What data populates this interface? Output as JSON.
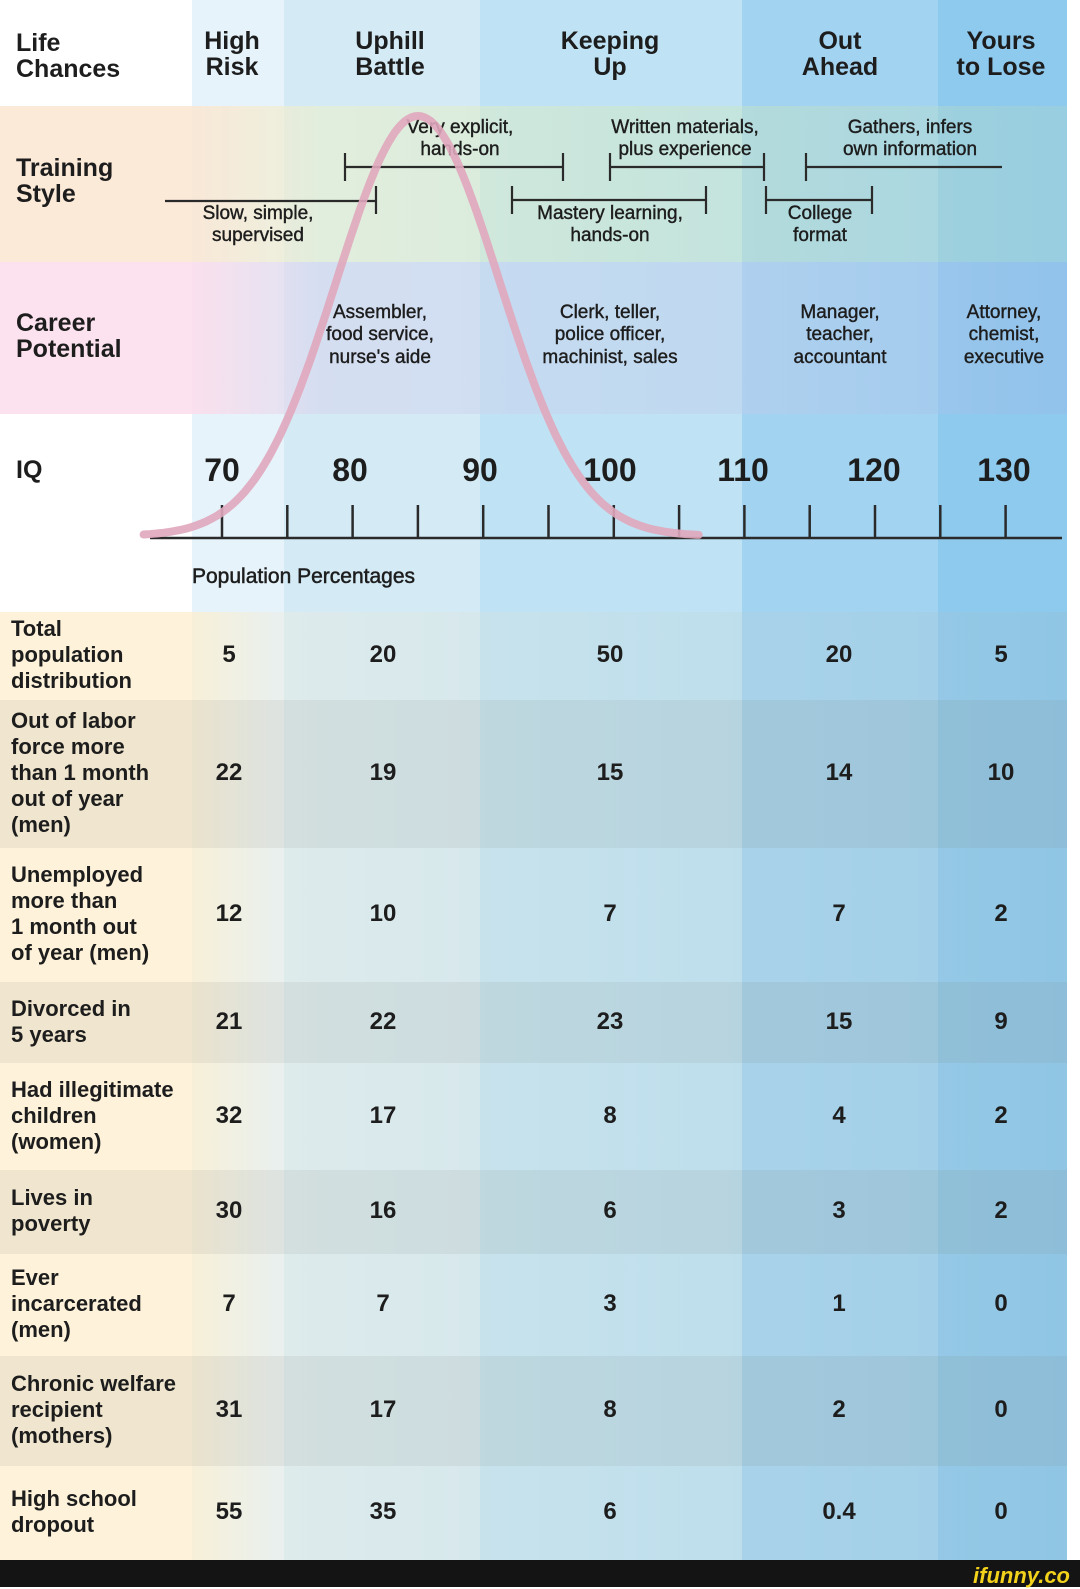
{
  "header": {
    "corner_label": "Life\nChances",
    "columns": [
      "High\nRisk",
      "Uphill\nBattle",
      "Keeping\nUp",
      "Out\nAhead",
      "Yours\nto Lose"
    ]
  },
  "training": {
    "label": "Training\nStyle",
    "items": [
      "Very explicit,\nhands-on",
      "Written materials,\nplus experience",
      "Gathers, infers\nown information",
      "Slow, simple,\nsupervised",
      "Mastery learning,\nhands-on",
      "College\nformat"
    ]
  },
  "career": {
    "label": "Career\nPotential",
    "items": [
      "Assembler,\nfood service,\nnurse's aide",
      "Clerk, teller,\npolice officer,\nmachinist, sales",
      "Manager,\nteacher,\naccountant",
      "Attorney,\nchemist,\nexecutive"
    ]
  },
  "iq": {
    "label": "IQ",
    "ticks": [
      "70",
      "80",
      "90",
      "100",
      "110",
      "120",
      "130"
    ]
  },
  "section_title": "Population Percentages",
  "colors": {
    "col_high_risk": "#e6f3fa",
    "col_uphill": "#d4ebf6",
    "col_keeping": "#bfe3f4",
    "col_out_ahead": "#9fd1f1",
    "col_yours": "#8cc8ee",
    "curve": "#e0a7bd",
    "training_band": "#f8ead8",
    "career_band": "#f7dfe9",
    "brand": "#f2d21b"
  },
  "chart_data": {
    "type": "table",
    "title": "",
    "x": [
      70,
      80,
      90,
      100,
      110,
      120,
      130
    ],
    "xlabel": "IQ",
    "categories": [
      "High Risk",
      "Uphill Battle",
      "Keeping Up",
      "Out Ahead",
      "Yours to Lose"
    ],
    "series": [
      {
        "name": "Total population distribution",
        "values": [
          "5",
          "20",
          "50",
          "20",
          "5"
        ]
      },
      {
        "name": "Out of labor force more than 1 month out of year (men)",
        "values": [
          "22",
          "19",
          "15",
          "14",
          "10"
        ]
      },
      {
        "name": "Unemployed more than 1 month out of year (men)",
        "values": [
          "12",
          "10",
          "7",
          "7",
          "2"
        ]
      },
      {
        "name": "Divorced in 5 years",
        "values": [
          "21",
          "22",
          "23",
          "15",
          "9"
        ]
      },
      {
        "name": "Had illegitimate children (women)",
        "values": [
          "32",
          "17",
          "8",
          "4",
          "2"
        ]
      },
      {
        "name": "Lives in poverty",
        "values": [
          "30",
          "16",
          "6",
          "3",
          "2"
        ]
      },
      {
        "name": "Ever incarcerated (men)",
        "values": [
          "7",
          "7",
          "3",
          "1",
          "0"
        ]
      },
      {
        "name": "Chronic welfare recipient (mothers)",
        "values": [
          "31",
          "17",
          "8",
          "2",
          "0"
        ]
      },
      {
        "name": "High school dropout",
        "values": [
          "55",
          "35",
          "6",
          "0.4",
          "0"
        ]
      }
    ],
    "rows": [
      {
        "label": "Total\npopulation\ndistribution",
        "values": [
          "5",
          "20",
          "50",
          "20",
          "5"
        ]
      },
      {
        "label": "Out of labor\nforce more\nthan 1 month\nout of year\n(men)",
        "values": [
          "22",
          "19",
          "15",
          "14",
          "10"
        ]
      },
      {
        "label": "Unemployed\nmore than\n1 month out\nof year (men)",
        "values": [
          "12",
          "10",
          "7",
          "7",
          "2"
        ]
      },
      {
        "label": "Divorced in\n5 years",
        "values": [
          "21",
          "22",
          "23",
          "15",
          "9"
        ]
      },
      {
        "label": "Had illegitimate\nchildren\n(women)",
        "values": [
          "32",
          "17",
          "8",
          "4",
          "2"
        ]
      },
      {
        "label": "Lives in\npoverty",
        "values": [
          "30",
          "16",
          "6",
          "3",
          "2"
        ]
      },
      {
        "label": "Ever\nincarcerated\n(men)",
        "values": [
          "7",
          "7",
          "3",
          "1",
          "0"
        ]
      },
      {
        "label": "Chronic welfare\nrecipient\n(mothers)",
        "values": [
          "31",
          "17",
          "8",
          "2",
          "0"
        ]
      },
      {
        "label": "High school\ndropout",
        "values": [
          "55",
          "35",
          "6",
          "0.4",
          "0"
        ]
      }
    ]
  },
  "footer": {
    "brand": "ifunny.co"
  }
}
